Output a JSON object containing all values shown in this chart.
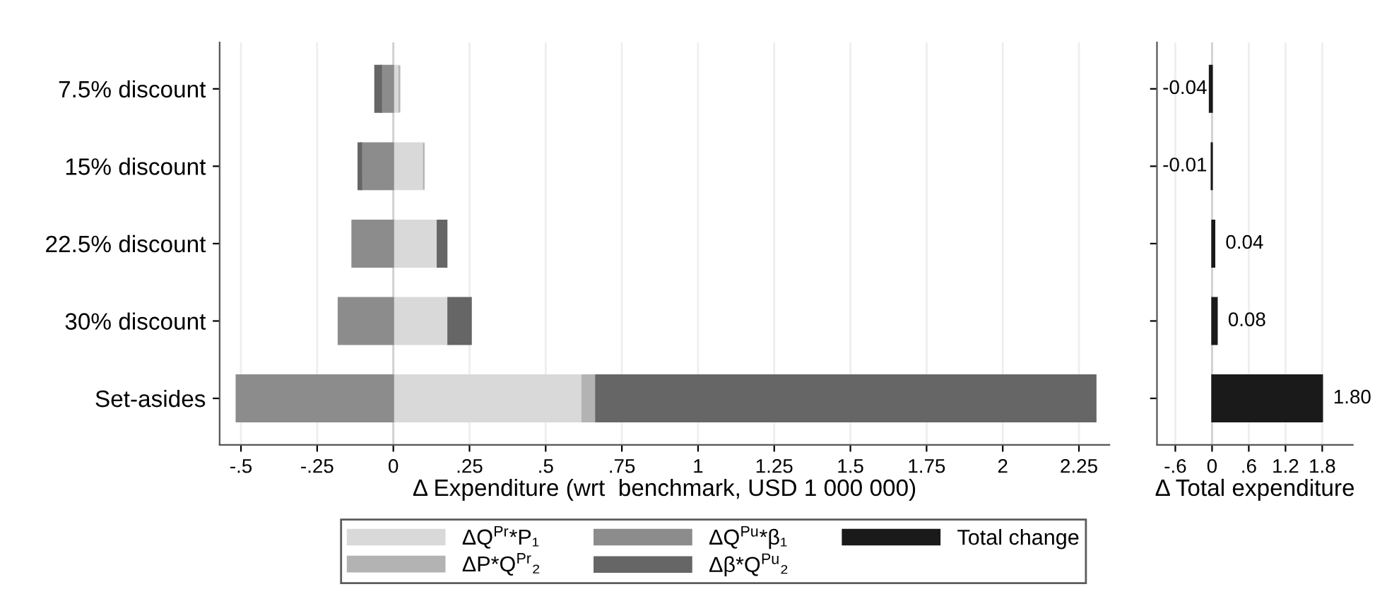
{
  "chart_data": [
    {
      "type": "bar",
      "orientation": "horizontal",
      "stacked": true,
      "categories": [
        "7.5% discount",
        "15% discount",
        "22.5% discount",
        "30% discount",
        "Set-asides"
      ],
      "series": [
        {
          "name": "ΔQ$^{Pr}$*P₁",
          "color": "#d9d9d9",
          "values": [
            0.02,
            0.1,
            0.145,
            0.18,
            0.62
          ]
        },
        {
          "name": "ΔP*Q$^{Pr}$₂",
          "color": "#b3b3b3",
          "values": [
            0,
            0,
            0,
            0,
            0.045
          ]
        },
        {
          "name": "ΔQ$^{Pu}$*β₁",
          "color": "#8c8c8c",
          "values": [
            -0.04,
            -0.105,
            -0.135,
            -0.18,
            -0.515
          ]
        },
        {
          "name": "Δβ*Q$^{Pu}$₂",
          "color": "#666666",
          "values": [
            -0.02,
            -0.01,
            0.03,
            0.075,
            1.64
          ]
        }
      ],
      "xlabel": "Δ Expenditure (wrt  benchmark, USD 1 000 000)",
      "xlim": [
        -0.57,
        2.35
      ],
      "xticks": [
        {
          "value": -0.5,
          "label": "-.5"
        },
        {
          "value": -0.25,
          "label": "-.25"
        },
        0,
        {
          "value": 0.25,
          "label": ".25"
        },
        {
          "value": 0.5,
          "label": ".5"
        },
        {
          "value": 0.75,
          "label": ".75"
        },
        1,
        1.25,
        1.5,
        1.75,
        2,
        2.25
      ],
      "grid": "x",
      "legend": "bottom"
    },
    {
      "type": "bar",
      "orientation": "horizontal",
      "categories": [
        null,
        null,
        null,
        null,
        null
      ],
      "series": [
        {
          "name": "Total change",
          "color": "#1a1a1a",
          "values": [
            -0.04,
            -0.01,
            0.04,
            0.08,
            1.8
          ],
          "value_labels": [
            "-0.04",
            "-0.01",
            "0.04",
            "0.08",
            "1.80"
          ]
        }
      ],
      "xlabel": "Δ Total expenditure",
      "xlim": [
        -0.9,
        2.3
      ],
      "xticks": [
        {
          "value": -0.6,
          "label": "-.6"
        },
        0,
        {
          "value": 0.6,
          "label": ".6"
        },
        1.2,
        1.8
      ],
      "grid": "x",
      "legend": "bottom",
      "tick_labels": "x"
    }
  ]
}
